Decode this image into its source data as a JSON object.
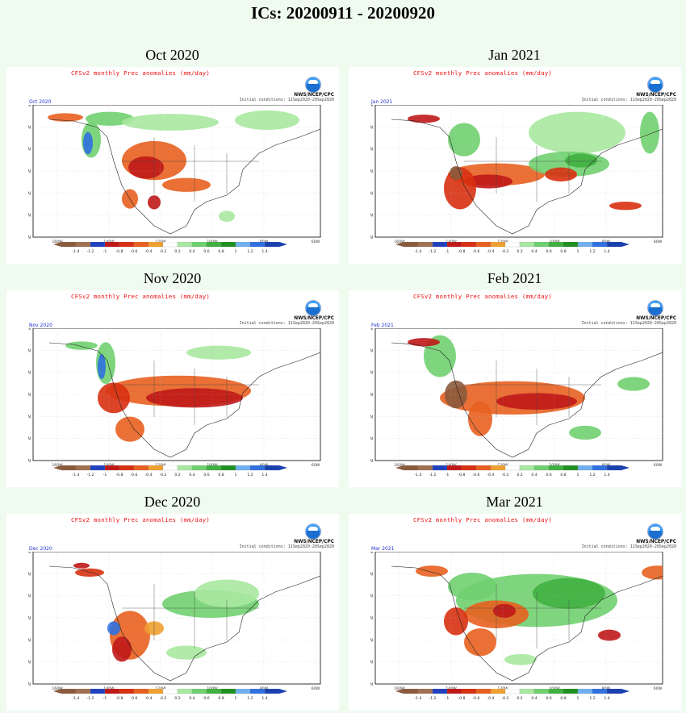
{
  "page_title": "ICs: 20200911 - 20200920",
  "common": {
    "map_title": "CFSv2 monthly Prec anomalies (mm/day)",
    "agency": "NWS/NCEP/CPC",
    "initial_conditions": "Initial conditions: 11Sep2020-20Sep2020",
    "lat_labels": [
      "70N",
      "60N",
      "50N",
      "40N",
      "30N",
      "20N",
      "10N"
    ],
    "lon_labels": [
      "160W",
      "140W",
      "120W",
      "100W",
      "80W",
      "60W"
    ],
    "colorbar_ticks": [
      "-1.4",
      "-1.2",
      "-1",
      "-0.8",
      "-0.6",
      "-0.4",
      "-0.2",
      "0.2",
      "0.4",
      "0.6",
      "0.8",
      "1",
      "1.2",
      "1.4"
    ],
    "colorbar_colors": [
      "#8b5a3c",
      "#a07050",
      "#2040c0",
      "#c01818",
      "#d83010",
      "#e86020",
      "#f0a030",
      "#ffffff",
      "#a8e8a0",
      "#70d070",
      "#40b040",
      "#209020",
      "#70b0f0",
      "#3070e0",
      "#1a40b0"
    ]
  },
  "panels": [
    {
      "label": "Oct 2020",
      "month_tag": "Oct 2020"
    },
    {
      "label": "Jan 2021",
      "month_tag": "Jan 2021"
    },
    {
      "label": "Nov 2020",
      "month_tag": "Nov 2020"
    },
    {
      "label": "Feb 2021",
      "month_tag": "Feb 2021"
    },
    {
      "label": "Dec 2020",
      "month_tag": "Dec 2020"
    },
    {
      "label": "Mar 2021",
      "month_tag": "Mar 2021"
    }
  ]
}
